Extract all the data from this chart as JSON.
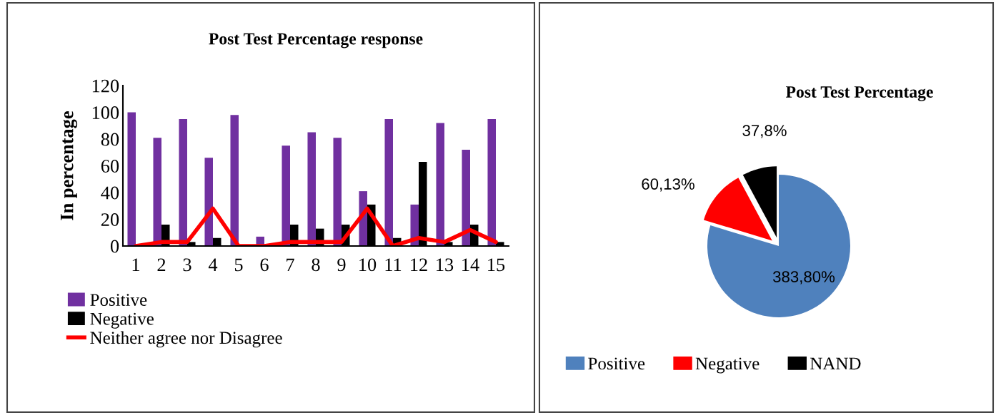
{
  "chart_data": [
    {
      "type": "bar",
      "title": "Post Test Percentage response",
      "ylabel": "In percentage",
      "categories": [
        "1",
        "2",
        "3",
        "4",
        "5",
        "6",
        "7",
        "8",
        "9",
        "10",
        "11",
        "12",
        "13",
        "14",
        "15"
      ],
      "ylim": [
        0,
        120
      ],
      "yticks": [
        0,
        20,
        40,
        60,
        80,
        100,
        120
      ],
      "legend": "bottom left",
      "grid": false,
      "series": [
        {
          "name": "Positive",
          "color": "#7030a0",
          "values": [
            100,
            81,
            95,
            66,
            98,
            7,
            75,
            85,
            81,
            41,
            95,
            31,
            92,
            72,
            95
          ]
        },
        {
          "name": "Negative",
          "color": "#000000",
          "values": [
            0,
            16,
            3,
            6,
            0,
            0,
            16,
            13,
            16,
            31,
            6,
            63,
            3,
            16,
            3
          ]
        },
        {
          "name": "Neither agree nor Disagree",
          "type": "line",
          "color": "#ff0000",
          "values": [
            0,
            3,
            3,
            28,
            0,
            0,
            3,
            3,
            3,
            28,
            0,
            6,
            3,
            12,
            3
          ]
        }
      ]
    },
    {
      "type": "pie",
      "title": "Post Test Percentage",
      "categories": [
        "Positive",
        "Negative",
        "NAND"
      ],
      "values": [
        383.8,
        60.13,
        37.8
      ],
      "colors": [
        "#4f81bd",
        "#ff0000",
        "#000000"
      ],
      "value_labels": [
        "383,80%",
        "60,13%",
        "37,8%"
      ],
      "legend": "bottom"
    }
  ]
}
